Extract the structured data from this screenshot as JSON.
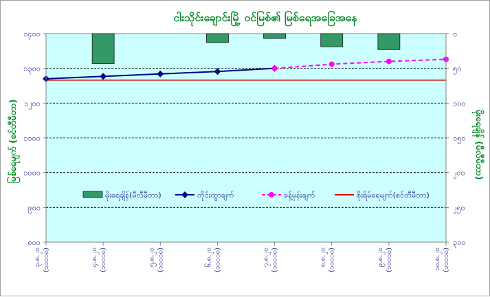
{
  "chart_data": {
    "type": "bar+line",
    "title": "ငါးသိုင်းချောင်းမြို့ ဝင်မြစ်၏ မြစ်ရေအခြေအနေ",
    "left_axis": {
      "label": "မြစ်ရေမျက် (စင်တီမီတာ)",
      "min": 800,
      "max": 1400,
      "ticks": [
        800,
        900,
        1000,
        1100,
        1200,
        1300,
        1400
      ],
      "tick_labels": [
        "၈၀၀",
        "၉၀၀",
        "၁၀၀၀",
        "၁၁၀၀",
        "၁၂၀၀",
        "၁၃၀၀",
        "၁၄၀၀"
      ]
    },
    "right_axis": {
      "label": "မိုးရေချိန် (မီလီမီတာ)",
      "min": 0,
      "max": 300,
      "reversed": true,
      "ticks": [
        0,
        50,
        100,
        150,
        200,
        250,
        300
      ],
      "tick_labels": [
        "၀",
        "၅၀",
        "၁၀၀",
        "၁၅၀",
        "၂၀၀",
        "၂၅၀",
        "၃၀၀"
      ]
    },
    "categories": [
      "၃.၈.၂၀၂၀",
      "၄.၈.၂၀၂၀",
      "၅.၈.၂၀၂၀",
      "၆.၈.၂၀၂၀",
      "၇.၈.၂၀၂၀",
      "၈.၈.၂၀၂၀",
      "၉.၈.၂၀၂၀",
      "၁၀.၈.၂၀၂၀"
    ],
    "x_tick_lines": [
      [
        "၃.၈.၂၀",
        "(၁၀၀၁၀)"
      ],
      [
        "၄.၈.၂၀",
        "(၁၀၀၁၀)"
      ],
      [
        "၅.၈.၂၀",
        "(၁၀၀၁၀)"
      ],
      [
        "၆.၈.၂၀",
        "(၁၀၀၁၀)"
      ],
      [
        "၇.၈.၂၀",
        "(၁၀၀၁၀)"
      ],
      [
        "၈.၈.၂၀",
        "(၁၀၀၁၀)"
      ],
      [
        "၉.၈.၂၀",
        "(၁၀၀၁၀)"
      ],
      [
        "၁၀.၈.၂၀",
        "(၁၀၀၁၀)"
      ]
    ],
    "series": [
      {
        "name": "မိုးရေချိန်(မီလီမီတာ)",
        "type": "bar",
        "axis": "right",
        "color": "#339966",
        "values": [
          null,
          43,
          null,
          13,
          7,
          19,
          23,
          null
        ]
      },
      {
        "name": "တိုင်းထွာချက်",
        "type": "line",
        "axis": "left",
        "color": "#000080",
        "values": [
          1270,
          1277,
          1284,
          1291,
          1300,
          null,
          null,
          null
        ]
      },
      {
        "name": "ခန့်မှန်းချက်",
        "type": "line-dashed",
        "axis": "left",
        "color": "#ff00ff",
        "values": [
          null,
          null,
          null,
          null,
          1300,
          1312,
          1320,
          1326
        ]
      },
      {
        "name": "စိုးရိမ်ရေမျက်(စင်တီမီတာ)",
        "type": "hline",
        "axis": "left",
        "color": "#e00000",
        "value": 1266
      }
    ],
    "plot_background": "#ccffff",
    "grid": true,
    "legend_position": "inside-lower-center"
  }
}
